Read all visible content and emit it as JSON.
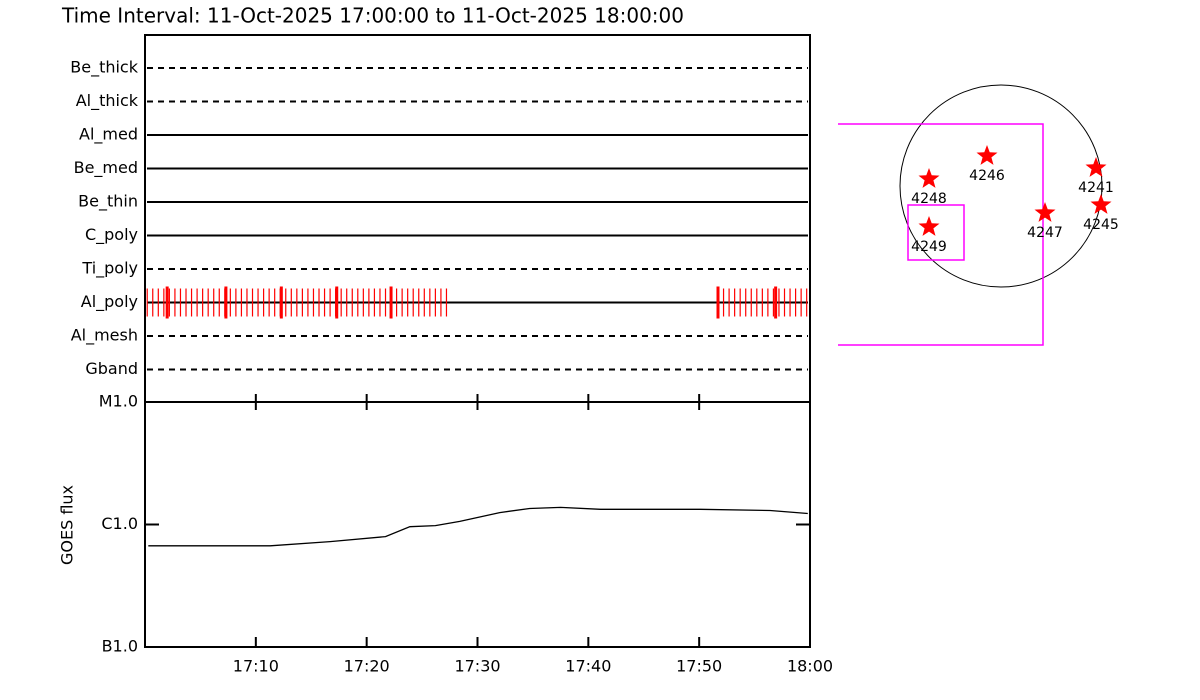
{
  "chart_data": [
    {
      "type": "timeline",
      "title": "Time Interval: 11-Oct-2025 17:00:00 to 11-Oct-2025 18:00:00",
      "categories": [
        "Be_thick",
        "Al_thick",
        "Al_med",
        "Be_med",
        "Be_thin",
        "C_poly",
        "Ti_poly",
        "Al_poly",
        "Al_mesh",
        "Gband"
      ],
      "line_styles": [
        "dashed",
        "dashed",
        "solid",
        "solid",
        "solid",
        "solid",
        "dashed",
        "solid",
        "dashed",
        "dashed"
      ],
      "exposure_filter": "Al_poly",
      "exposure_color": "#ff0000",
      "exposures_x": [
        0.2,
        0.7,
        1.2,
        1.7,
        2.2,
        2.7,
        3.2,
        3.7,
        4.2,
        4.7,
        5.2,
        5.7,
        6.2,
        6.7,
        7.2,
        7.7,
        8.2,
        8.7,
        9.2,
        9.7,
        10.2,
        10.7,
        11.2,
        11.7,
        12.2,
        12.7,
        13.2,
        13.7,
        14.2,
        14.7,
        15.2,
        15.7,
        16.2,
        16.7,
        17.2,
        17.7,
        18.2,
        18.7,
        19.2,
        19.7,
        20.2,
        20.7,
        21.2,
        21.7,
        22.2,
        22.7,
        23.2,
        23.7,
        24.2,
        24.7,
        25.2,
        25.7,
        26.2,
        26.7,
        27.2,
        51.7,
        52.2,
        52.7,
        53.2,
        53.7,
        54.2,
        54.7,
        55.2,
        55.7,
        56.2,
        56.7,
        57.2,
        57.7,
        58.2,
        58.7,
        59.2,
        59.7
      ],
      "major_exposures_x": [
        2.0,
        7.3,
        12.3,
        17.3,
        22.2,
        51.7,
        56.9
      ],
      "xlim": [
        0,
        60
      ]
    },
    {
      "type": "line",
      "ylabel": "GOES flux",
      "log_y": true,
      "color": "#000000",
      "x": [
        0.3,
        11.3,
        16.7,
        21.7,
        23.9,
        26.2,
        28.4,
        32.0,
        34.7,
        37.5,
        41.1,
        50.1,
        56.4,
        59.8
      ],
      "values": [
        6.7e-07,
        6.7e-07,
        7.25e-07,
        7.97e-07,
        9.6e-07,
        9.8e-07,
        1.06e-06,
        1.25e-06,
        1.35e-06,
        1.38e-06,
        1.33e-06,
        1.33e-06,
        1.3e-06,
        1.23e-06
      ],
      "xlim": [
        0,
        60
      ],
      "xticks": [
        {
          "value": 10,
          "label": "17:10"
        },
        {
          "value": 20,
          "label": "17:20"
        },
        {
          "value": 30,
          "label": "17:30"
        },
        {
          "value": 40,
          "label": "17:40"
        },
        {
          "value": 50,
          "label": "17:50"
        },
        {
          "value": 60,
          "label": "18:00"
        }
      ],
      "ylim": [
        1e-07,
        1e-05
      ],
      "yticks": [
        {
          "value": 1e-07,
          "label": "B1.0"
        },
        {
          "value": 1e-06,
          "label": "C1.0"
        },
        {
          "value": 1e-05,
          "label": "M1.0"
        }
      ]
    }
  ],
  "sun_map": {
    "regions": [
      "4248",
      "4246",
      "4241",
      "4249",
      "4247",
      "4245"
    ]
  }
}
